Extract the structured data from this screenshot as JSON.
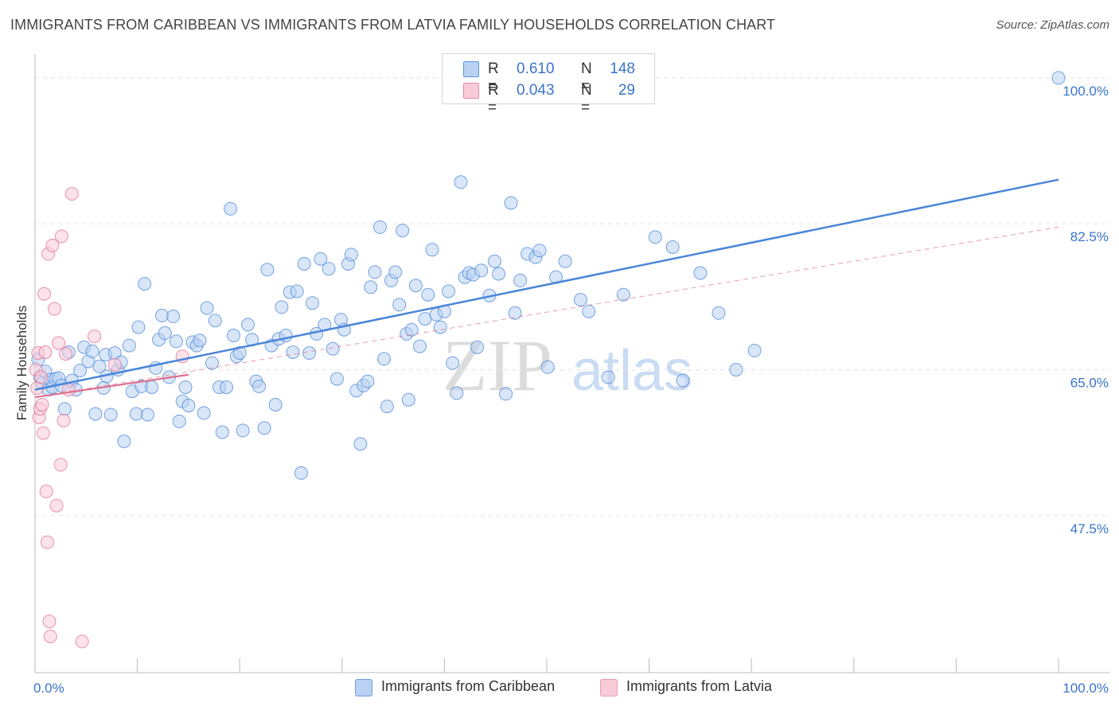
{
  "title": "IMMIGRANTS FROM CARIBBEAN VS IMMIGRANTS FROM LATVIA FAMILY HOUSEHOLDS CORRELATION CHART",
  "source": "Source: ZipAtlas.com",
  "watermark": {
    "zip": "ZIP",
    "atlas": "atlas"
  },
  "legend": {
    "rows": [
      {
        "r_label": "R =",
        "r_value": "0.610",
        "n_label": "N =",
        "n_value": "148",
        "color": "#5b93e0",
        "fill": "#b9d1f3"
      },
      {
        "r_label": "R =",
        "r_value": "0.043",
        "n_label": "N =",
        "n_value": "29",
        "color": "#e58aa6",
        "fill": "#f9cbd8"
      }
    ]
  },
  "bottom_legend": [
    {
      "label": "Immigrants from Caribbean",
      "fill": "#b9d1f3",
      "stroke": "#6f9fe0"
    },
    {
      "label": "Immigrants from Latvia",
      "fill": "#f9cbd8",
      "stroke": "#e89ab2"
    }
  ],
  "chart_data": {
    "type": "scatter",
    "title": "IMMIGRANTS FROM CARIBBEAN VS IMMIGRANTS FROM LATVIA FAMILY HOUSEHOLDS CORRELATION CHART",
    "xlabel": "",
    "ylabel": "Family Households",
    "xlim": [
      0,
      100
    ],
    "ylim": [
      30.1,
      101.9
    ],
    "x_tick_labels": [
      "0.0%",
      "100.0%"
    ],
    "y_ticks": [
      {
        "value": 47.5,
        "label": "47.5%"
      },
      {
        "value": 65.0,
        "label": "65.0%"
      },
      {
        "value": 82.5,
        "label": "82.5%"
      },
      {
        "value": 100.0,
        "label": "100.0%"
      }
    ],
    "x_minor_ticks": [
      0,
      10,
      20,
      30,
      40,
      50,
      60,
      70,
      80,
      90,
      100
    ],
    "grid": true,
    "series": [
      {
        "name": "Immigrants from Caribbean",
        "color": "#4a86d8",
        "fill": "#b9d1f3",
        "points": [
          [
            0.3,
            66.2
          ],
          [
            0.5,
            64.1
          ],
          [
            0.7,
            63.4
          ],
          [
            1.0,
            64.8
          ],
          [
            1.3,
            62.6
          ],
          [
            1.5,
            63.8
          ],
          [
            1.7,
            62.9
          ],
          [
            2.0,
            63.9
          ],
          [
            2.3,
            64.0
          ],
          [
            2.6,
            63.1
          ],
          [
            2.9,
            60.3
          ],
          [
            3.3,
            67.1
          ],
          [
            3.6,
            63.7
          ],
          [
            4.0,
            62.6
          ],
          [
            4.4,
            64.9
          ],
          [
            4.8,
            67.7
          ],
          [
            5.2,
            66.0
          ],
          [
            5.6,
            67.2
          ],
          [
            5.9,
            59.7
          ],
          [
            6.3,
            65.4
          ],
          [
            6.7,
            62.8
          ],
          [
            6.9,
            66.8
          ],
          [
            7.4,
            59.6
          ],
          [
            7.8,
            67.0
          ],
          [
            8.1,
            65.0
          ],
          [
            8.4,
            65.9
          ],
          [
            8.7,
            56.4
          ],
          [
            9.2,
            67.9
          ],
          [
            9.5,
            62.4
          ],
          [
            9.9,
            59.7
          ],
          [
            10.1,
            70.1
          ],
          [
            10.4,
            63.0
          ],
          [
            10.7,
            75.3
          ],
          [
            11.0,
            59.6
          ],
          [
            11.4,
            62.9
          ],
          [
            11.8,
            65.2
          ],
          [
            12.1,
            68.6
          ],
          [
            12.4,
            71.5
          ],
          [
            12.7,
            69.4
          ],
          [
            13.1,
            64.1
          ],
          [
            13.5,
            71.4
          ],
          [
            13.8,
            68.4
          ],
          [
            14.1,
            58.8
          ],
          [
            14.4,
            61.2
          ],
          [
            14.7,
            62.9
          ],
          [
            15.0,
            60.7
          ],
          [
            15.4,
            68.3
          ],
          [
            15.8,
            67.9
          ],
          [
            16.1,
            68.5
          ],
          [
            16.5,
            59.8
          ],
          [
            16.8,
            72.4
          ],
          [
            17.3,
            65.8
          ],
          [
            17.6,
            70.9
          ],
          [
            18.0,
            62.9
          ],
          [
            18.3,
            57.5
          ],
          [
            18.7,
            62.9
          ],
          [
            19.1,
            84.3
          ],
          [
            19.4,
            69.1
          ],
          [
            19.7,
            66.6
          ],
          [
            20.0,
            67.0
          ],
          [
            20.3,
            57.7
          ],
          [
            20.8,
            70.4
          ],
          [
            21.2,
            68.6
          ],
          [
            21.6,
            63.6
          ],
          [
            21.9,
            63.0
          ],
          [
            22.4,
            58.0
          ],
          [
            22.7,
            77.0
          ],
          [
            23.1,
            67.9
          ],
          [
            23.5,
            60.8
          ],
          [
            23.8,
            68.7
          ],
          [
            24.1,
            72.5
          ],
          [
            24.5,
            69.1
          ],
          [
            24.9,
            74.3
          ],
          [
            25.2,
            67.1
          ],
          [
            25.6,
            74.4
          ],
          [
            26.0,
            52.6
          ],
          [
            26.3,
            77.7
          ],
          [
            26.8,
            67.0
          ],
          [
            27.1,
            73.0
          ],
          [
            27.5,
            69.3
          ],
          [
            27.9,
            78.3
          ],
          [
            28.3,
            70.4
          ],
          [
            28.7,
            77.1
          ],
          [
            29.1,
            67.5
          ],
          [
            29.5,
            63.9
          ],
          [
            29.9,
            71.0
          ],
          [
            30.2,
            69.8
          ],
          [
            30.6,
            77.7
          ],
          [
            30.9,
            78.8
          ],
          [
            31.4,
            62.5
          ],
          [
            31.8,
            56.1
          ],
          [
            32.1,
            63.1
          ],
          [
            32.5,
            63.6
          ],
          [
            32.8,
            74.9
          ],
          [
            33.2,
            76.7
          ],
          [
            33.7,
            82.1
          ],
          [
            34.1,
            66.3
          ],
          [
            34.4,
            60.6
          ],
          [
            34.8,
            75.7
          ],
          [
            35.2,
            76.7
          ],
          [
            35.6,
            72.8
          ],
          [
            35.9,
            81.7
          ],
          [
            36.3,
            69.3
          ],
          [
            36.8,
            69.8
          ],
          [
            37.2,
            75.1
          ],
          [
            37.6,
            67.8
          ],
          [
            38.1,
            71.1
          ],
          [
            38.4,
            74.0
          ],
          [
            38.8,
            79.4
          ],
          [
            39.2,
            71.6
          ],
          [
            39.6,
            70.1
          ],
          [
            40.0,
            72.0
          ],
          [
            40.4,
            74.4
          ],
          [
            40.8,
            65.8
          ],
          [
            41.2,
            62.2
          ],
          [
            41.6,
            87.5
          ],
          [
            42.0,
            76.1
          ],
          [
            42.4,
            76.6
          ],
          [
            42.8,
            76.4
          ],
          [
            43.2,
            67.7
          ],
          [
            43.6,
            76.9
          ],
          [
            44.4,
            73.9
          ],
          [
            44.9,
            78.0
          ],
          [
            45.3,
            76.5
          ],
          [
            46.0,
            62.1
          ],
          [
            46.5,
            85.0
          ],
          [
            46.9,
            71.8
          ],
          [
            47.4,
            75.7
          ],
          [
            48.1,
            78.9
          ],
          [
            48.9,
            78.5
          ],
          [
            49.3,
            79.3
          ],
          [
            50.1,
            65.3
          ],
          [
            50.9,
            76.1
          ],
          [
            51.8,
            78.0
          ],
          [
            53.3,
            73.4
          ],
          [
            54.1,
            72.0
          ],
          [
            56.0,
            64.1
          ],
          [
            57.5,
            74.0
          ],
          [
            60.6,
            80.9
          ],
          [
            62.3,
            79.7
          ],
          [
            63.3,
            63.7
          ],
          [
            65.0,
            76.6
          ],
          [
            66.8,
            71.8
          ],
          [
            68.5,
            65.0
          ],
          [
            70.3,
            67.3
          ],
          [
            100.0,
            100.0
          ],
          [
            7.0,
            64.2
          ],
          [
            36.5,
            61.4
          ]
        ],
        "trend": {
          "x1": 0,
          "y1": 62.6,
          "x2": 100,
          "y2": 87.8
        }
      },
      {
        "name": "Immigrants from Latvia",
        "color": "#e07090",
        "fill": "#f9cbd8",
        "points": [
          [
            0.1,
            65.0
          ],
          [
            0.2,
            62.8
          ],
          [
            0.3,
            67.0
          ],
          [
            0.4,
            59.3
          ],
          [
            0.5,
            60.3
          ],
          [
            0.6,
            64.1
          ],
          [
            0.7,
            60.8
          ],
          [
            0.8,
            57.4
          ],
          [
            0.9,
            74.1
          ],
          [
            1.0,
            67.1
          ],
          [
            1.1,
            50.4
          ],
          [
            1.2,
            44.3
          ],
          [
            1.3,
            78.9
          ],
          [
            1.4,
            34.8
          ],
          [
            1.5,
            33.0
          ],
          [
            1.7,
            79.9
          ],
          [
            1.9,
            72.3
          ],
          [
            2.1,
            48.7
          ],
          [
            2.3,
            68.2
          ],
          [
            2.5,
            53.6
          ],
          [
            2.6,
            81.0
          ],
          [
            2.8,
            58.9
          ],
          [
            3.0,
            66.9
          ],
          [
            3.3,
            62.6
          ],
          [
            3.6,
            86.1
          ],
          [
            4.6,
            32.4
          ],
          [
            5.8,
            69.0
          ],
          [
            7.8,
            65.6
          ],
          [
            14.4,
            66.6
          ]
        ],
        "trend": {
          "x1": 0,
          "y1": 61.7,
          "x2": 15,
          "y2": 64.4
        },
        "trend_dashed": {
          "x1": 0,
          "y1": 61.7,
          "x2": 100,
          "y2": 82.1
        }
      }
    ]
  }
}
